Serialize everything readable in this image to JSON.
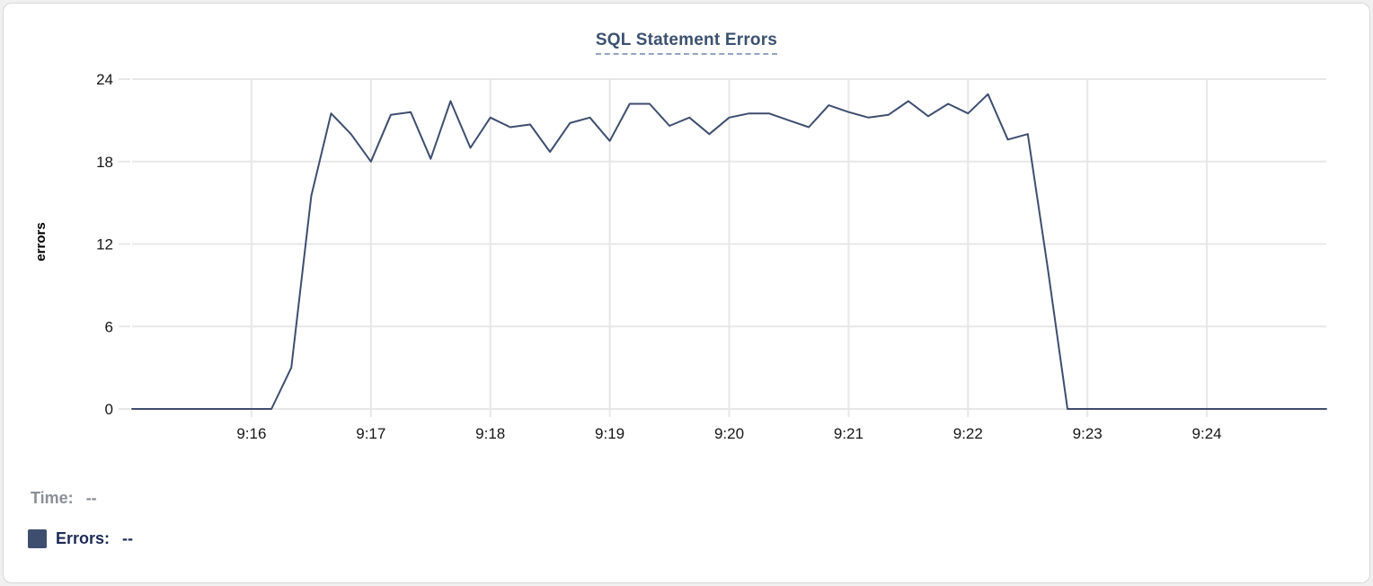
{
  "panel": {
    "title": "SQL Statement Errors"
  },
  "legend": {
    "time_label": "Time:",
    "time_value": "--",
    "errors_label": "Errors:",
    "errors_value": "--"
  },
  "theme": {
    "line_color": "#3e4e6e",
    "grid_color": "#e7e7e7",
    "tick_text_color": "#161616",
    "title_color": "#3b516f",
    "title_underline_color": "#96a3c2",
    "legend_time_color": "#8a8e96",
    "legend_errors_color": "#1e2c55",
    "swatch_color": "#3e4e6e",
    "card_border_color": "#d8d8d8"
  },
  "chart_data": {
    "type": "line",
    "title": "SQL Statement Errors",
    "xlabel": "",
    "ylabel": "errors",
    "ylim": [
      0,
      24
    ],
    "yticks": [
      0,
      6,
      12,
      18,
      24
    ],
    "grid": true,
    "legend_position": "bottom-left",
    "x_domain_seconds": 600,
    "x_start_time": "9:15:00",
    "x_end_time": "9:25:00",
    "sample_interval_seconds": 10,
    "xticks": [
      {
        "label": "9:16",
        "t": 60
      },
      {
        "label": "9:17",
        "t": 120
      },
      {
        "label": "9:18",
        "t": 180
      },
      {
        "label": "9:19",
        "t": 240
      },
      {
        "label": "9:20",
        "t": 300
      },
      {
        "label": "9:21",
        "t": 360
      },
      {
        "label": "9:22",
        "t": 420
      },
      {
        "label": "9:23",
        "t": 480
      },
      {
        "label": "9:24",
        "t": 540
      }
    ],
    "series": [
      {
        "name": "Errors",
        "start_t": 0,
        "values": [
          0,
          0,
          0,
          0,
          0,
          0,
          0,
          0,
          3,
          15.5,
          21.5,
          20,
          18,
          21.4,
          21.6,
          18.2,
          22.4,
          19,
          21.2,
          20.5,
          20.7,
          18.7,
          20.8,
          21.2,
          19.5,
          22.2,
          22.2,
          20.6,
          21.2,
          20,
          21.2,
          21.5,
          21.5,
          21,
          20.5,
          22.1,
          21.6,
          21.2,
          21.4,
          22.4,
          21.3,
          22.2,
          21.5,
          22.9,
          19.6,
          20,
          10.3,
          0,
          0,
          0,
          0,
          0,
          0,
          0,
          0,
          0,
          0,
          0,
          0,
          0,
          0
        ]
      }
    ]
  }
}
